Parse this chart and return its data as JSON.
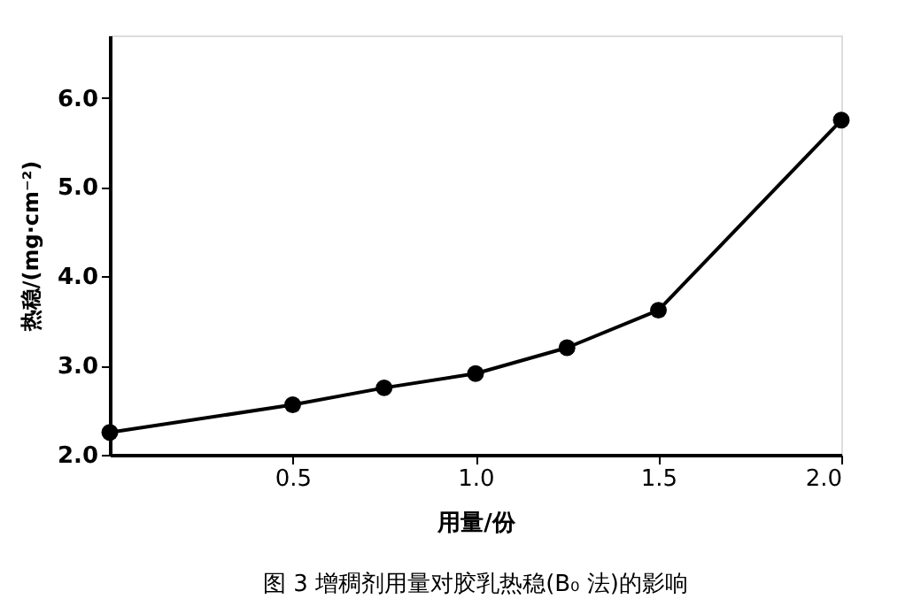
{
  "chart_data": {
    "type": "line",
    "xlabel": "用量/份",
    "ylabel": "热稳/(mg·cm⁻²)",
    "annotations": [
      "图 3   增稠剂用量对胶乳热稳(B₀ 法)的影响"
    ],
    "x": [
      0,
      0.5,
      0.75,
      1.0,
      1.25,
      1.5,
      2.0
    ],
    "series": [
      {
        "color": "#000000",
        "values": [
          2.25,
          2.56,
          2.75,
          2.91,
          3.2,
          3.62,
          5.75
        ]
      }
    ],
    "xlim": [
      0,
      2.0
    ],
    "ylim": [
      2.0,
      6.7
    ],
    "xticks": [
      0.5,
      {
        "value": 1.0,
        "label": "1.0"
      },
      1.5,
      {
        "value": 2.0,
        "label": "2.0"
      }
    ],
    "yticks": [
      {
        "value": 2.0,
        "label": "2.0"
      },
      {
        "value": 3.0,
        "label": "3.0"
      },
      {
        "value": 4.0,
        "label": "4.0"
      },
      {
        "value": 5.0,
        "label": "5.0"
      },
      {
        "value": 6.0,
        "label": "6.0"
      }
    ],
    "marker": "circle",
    "line_style": "solid",
    "grid": false
  }
}
